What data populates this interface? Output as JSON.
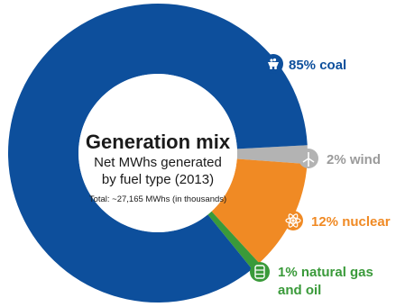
{
  "chart_data": {
    "type": "pie",
    "title": "Generation mix",
    "subtitle": "Net MWhs generated by fuel type (2013)",
    "subtitle_lines": [
      "Net MWhs generated",
      "by fuel type (2013)"
    ],
    "note": "Total: ~27,165 MWhs (in thousands)",
    "slices": [
      {
        "label": "85% coal",
        "value": 85,
        "color": "#0d4f9c",
        "label_color": "#0d4f9c",
        "icon": "coal-cart-icon"
      },
      {
        "label": "2% wind",
        "value": 2,
        "color": "#b3b3b3",
        "label_color": "#9b9b9b",
        "icon": "wind-turbine-icon"
      },
      {
        "label": "12% nuclear",
        "value": 12,
        "color": "#f08a24",
        "label_color": "#f08a24",
        "icon": "atom-icon"
      },
      {
        "label": "1% natural gas and oil",
        "label_lines": [
          "1% natural gas",
          "and oil"
        ],
        "value": 1,
        "color": "#3a9a3a",
        "label_color": "#3a9a3a",
        "icon": "gas-barrel-icon"
      }
    ]
  }
}
